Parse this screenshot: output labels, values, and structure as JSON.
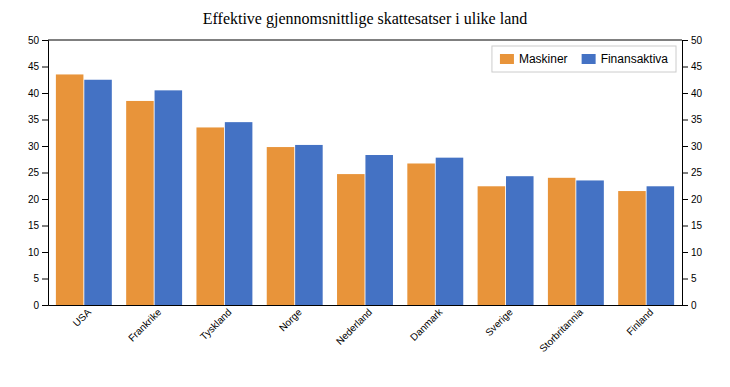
{
  "chart_data": {
    "type": "bar",
    "title": "Effektive gjennomsnittlige skattesatser i ulike land",
    "categories": [
      "USA",
      "Frankrike",
      "Tyskland",
      "Norge",
      "Nederland",
      "Danmark",
      "Sverige",
      "Storbritannia",
      "Finland"
    ],
    "series": [
      {
        "name": "Maskiner",
        "color": "#E8943A",
        "values": [
          43.5,
          38.5,
          33.5,
          29.8,
          24.7,
          26.7,
          22.4,
          24.0,
          21.5
        ]
      },
      {
        "name": "Finansaktiva",
        "color": "#4472C4",
        "values": [
          42.5,
          40.5,
          34.5,
          30.2,
          28.3,
          27.8,
          24.3,
          23.5,
          22.4
        ]
      }
    ],
    "ylim": [
      0,
      50
    ],
    "yticks": [
      0,
      5,
      10,
      15,
      20,
      25,
      30,
      35,
      40,
      45,
      50
    ],
    "y2lim": [
      0,
      50
    ],
    "y2ticks": [
      0,
      5,
      10,
      15,
      20,
      25,
      30,
      35,
      40,
      45,
      50
    ],
    "legend": "upper right",
    "grid": false
  }
}
